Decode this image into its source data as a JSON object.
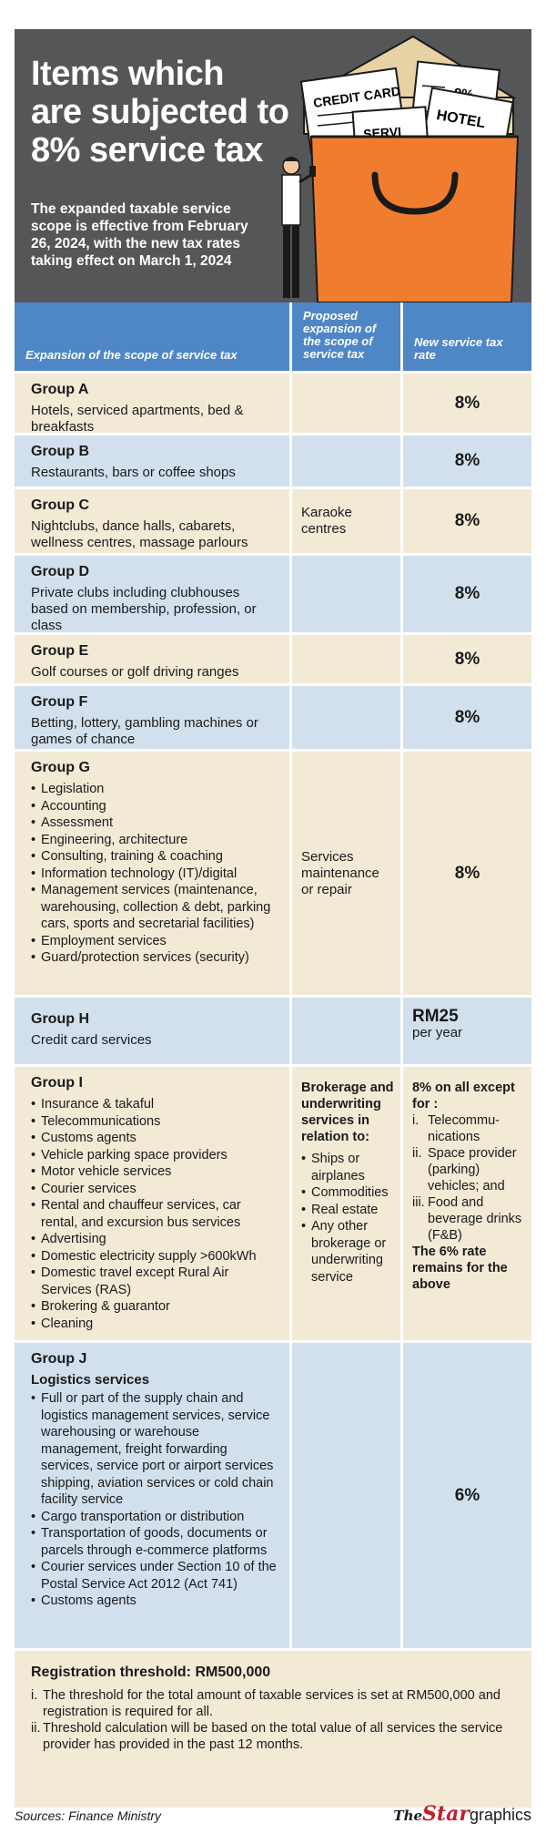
{
  "header": {
    "title_lines": [
      "Items which",
      "are subjected to",
      "8% service tax"
    ],
    "subtitle": "The expanded taxable service scope is effective from February 26, 2024, with the new tax rates taking effect on March 1, 2024",
    "illustration": {
      "papers": [
        "CREDIT CARD",
        "-8%",
        "HOTEL",
        "SERVI"
      ],
      "colors": {
        "bag": "#f07d2e",
        "envelope": "#ecd9b0",
        "header_bg": "#555658"
      }
    }
  },
  "table": {
    "colors": {
      "header": "#4f86c6",
      "beige": "#f3ead6",
      "blue": "#d2e0ee"
    },
    "headers": {
      "col1": "Expansion of the scope of service tax",
      "col2": "Proposed expansion of the scope of service tax",
      "col3": "New service tax rate"
    },
    "rows": [
      {
        "group": "Group A",
        "desc": "Hotels, serviced apartments, bed & breakfasts",
        "proposed": "",
        "rate": "8%"
      },
      {
        "group": "Group B",
        "desc": "Restaurants, bars or coffee shops",
        "proposed": "",
        "rate": "8%"
      },
      {
        "group": "Group C",
        "desc": "Nightclubs, dance halls, cabarets, wellness centres, massage parlours",
        "proposed": "Karaoke centres",
        "rate": "8%"
      },
      {
        "group": "Group D",
        "desc": "Private clubs including clubhouses based on membership, profession, or class",
        "proposed": "",
        "rate": "8%"
      },
      {
        "group": "Group E",
        "desc": "Golf courses or golf driving ranges",
        "proposed": "",
        "rate": "8%"
      },
      {
        "group": "Group F",
        "desc": "Betting, lottery, gambling machines or games of chance",
        "proposed": "",
        "rate": "8%"
      },
      {
        "group": "Group G",
        "items": [
          "Legislation",
          "Accounting",
          "Assessment",
          "Engineering, architecture",
          "Consulting, training & coaching",
          "Information technology (IT)/digital",
          "Management services (maintenance, warehousing, collection & debt, parking cars, sports and secretarial facilities)",
          "Employment services",
          "Guard/protection services (security)"
        ],
        "proposed": "Services maintenance or repair",
        "rate": "8%"
      },
      {
        "group": "Group H",
        "desc": "Credit card services",
        "proposed": "",
        "rate": "RM25",
        "rate_sub": "per year"
      },
      {
        "group": "Group I",
        "items": [
          "Insurance & takaful",
          "Telecommunications",
          "Customs agents",
          "Vehicle parking space providers",
          "Motor vehicle services",
          "Courier services",
          "Rental and chauffeur services, car rental, and excursion bus services",
          "Advertising",
          "Domestic electricity supply >600kWh",
          "Domestic travel except Rural Air Services (RAS)",
          "Brokering & guarantor",
          "Cleaning"
        ],
        "proposed_head": "Brokerage and underwriting services in relation to:",
        "proposed_items": [
          "Ships or airplanes",
          "Commodities",
          "Real estate",
          "Any other brokerage or underwriting service"
        ],
        "rate_head": "8% on all except for :",
        "rate_items": [
          {
            "num": "i.",
            "text": "Telecommu-nications"
          },
          {
            "num": "ii.",
            "text": "Space provider (parking) vehicles; and"
          },
          {
            "num": "iii.",
            "text": "Food and beverage drinks (F&B)"
          }
        ],
        "rate_tail": "The 6% rate remains for the above"
      },
      {
        "group": "Group J",
        "subhead": "Logistics services",
        "items": [
          "Full or part of the supply chain and logistics management services, service warehousing or warehouse management, freight forwarding services, service port or airport services shipping, aviation services or cold chain facility service",
          "Cargo transportation or distribution",
          "Transportation of goods, documents or parcels through e-commerce platforms",
          "Courier services under Section 10 of the Postal Service Act 2012 (Act 741)",
          "Customs agents"
        ],
        "proposed": "",
        "rate": "6%"
      }
    ],
    "footer": {
      "title": "Registration threshold: RM500,000",
      "items": [
        {
          "num": "i.",
          "text": "The threshold for the total amount of taxable services is set at RM500,000 and registration is required for all."
        },
        {
          "num": "ii.",
          "text": "Threshold calculation will be based on the total value of all services the service provider has provided in the past 12 months."
        }
      ]
    }
  },
  "source": "Sources: Finance Ministry",
  "logo": {
    "the": "The",
    "star": "Star",
    "graphics": "graphics"
  }
}
